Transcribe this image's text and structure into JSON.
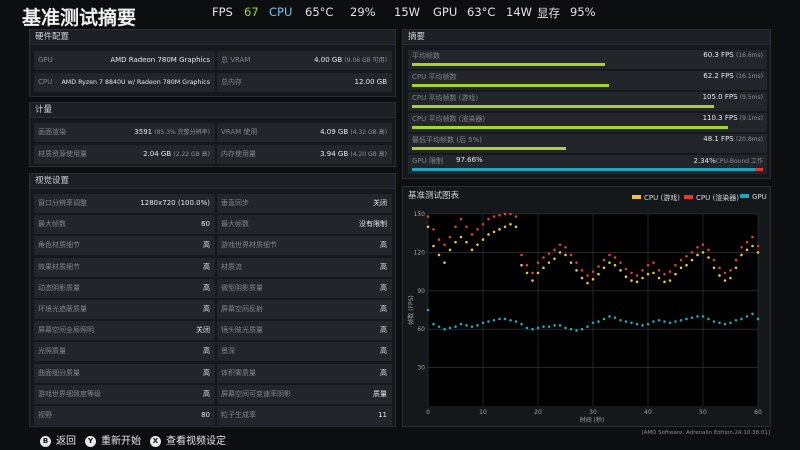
{
  "header": {
    "title": "基准测试摘要",
    "fps_label": "FPS",
    "fps_value": "67",
    "cpu_label": "CPU",
    "cpu_temp": "65°C",
    "cpu_util": "29%",
    "cpu_power": "15W",
    "gpu_label": "GPU",
    "gpu_temp": "63°C",
    "gpu_power": "14W",
    "vram_label": "显存",
    "vram_value": "95%"
  },
  "colors": {
    "fps_value": "#a7d32a",
    "cpu_label": "#7fc4ea",
    "bar": "#a7d32a",
    "cpu_game": "#e8c53a",
    "cpu_render": "#e23a3a",
    "gpu": "#1fa6bb"
  },
  "hardware": {
    "title": "硬件配置",
    "gpu_label": "GPU",
    "gpu_value": "AMD Radeon 780M Graphics",
    "vram_label": "总 VRAM",
    "vram_value": "4.00 GB",
    "vram_sub": "(9.06 GB 可用)",
    "cpu_label": "CPU",
    "cpu_value": "AMD Ryzen 7 8840U w/ Radeon 780M Graphics",
    "ram_label": "总内存",
    "ram_value": "12.00 GB"
  },
  "compute": {
    "title": "计量",
    "rows": [
      {
        "label": "画面渲染",
        "value": "3591",
        "sub": "(85.3% 完整分辨率)"
      },
      {
        "label": "VRAM 使用",
        "value": "4.09 GB",
        "sub": "(4.32 GB 高)"
      },
      {
        "label": "材质资源使用量",
        "value": "2.04 GB",
        "sub": "(2.22 GB 高)"
      },
      {
        "label": "内存使用量",
        "value": "3.94 GB",
        "sub": "(4.20 GB 高)"
      }
    ]
  },
  "settings": {
    "title": "视觉设置",
    "left": [
      {
        "label": "窗口分辨率调整",
        "value": "1280x720 (100.0%)"
      },
      {
        "label": "最大帧数",
        "value": "60"
      },
      {
        "label": "角色材质细节",
        "value": "高"
      },
      {
        "label": "效果材质细节",
        "value": "高"
      },
      {
        "label": "动态阴影质量",
        "value": "高"
      },
      {
        "label": "环境光遮蔽质量",
        "value": "高"
      },
      {
        "label": "屏幕空间全局照明",
        "value": "关闭"
      },
      {
        "label": "光照质量",
        "value": "高"
      },
      {
        "label": "曲面细分质量",
        "value": "高"
      },
      {
        "label": "游戏世界细致度等级",
        "value": "高"
      },
      {
        "label": "视野",
        "value": "80"
      }
    ],
    "right": [
      {
        "label": "垂直同步",
        "value": "关闭"
      },
      {
        "label": "最大帧数",
        "value": "没有限制"
      },
      {
        "label": "游戏世界材质细节",
        "value": "高"
      },
      {
        "label": "材质流",
        "value": "高"
      },
      {
        "label": "微型阴影质量",
        "value": "高"
      },
      {
        "label": "屏幕空间反射",
        "value": "高"
      },
      {
        "label": "镜头眩光质量",
        "value": "高"
      },
      {
        "label": "景深",
        "value": "高"
      },
      {
        "label": "体积雾质量",
        "value": "高"
      },
      {
        "label": "屏幕空间可变速率阴影",
        "value": "质量"
      },
      {
        "label": "粒子生成率",
        "value": "11"
      }
    ]
  },
  "summary": {
    "title": "摘要",
    "rows": [
      {
        "label": "平均帧数",
        "value": "60.3 FPS",
        "sub": "(16.6ms)",
        "pct": 0.55
      },
      {
        "label": "CPU 平均帧数",
        "value": "62.2 FPS",
        "sub": "(16.1ms)",
        "pct": 0.56
      },
      {
        "label": "CPU 平均帧数 (游戏)",
        "value": "105.0 FPS",
        "sub": "(9.5ms)",
        "pct": 0.86
      },
      {
        "label": "CPU 平均帧数 (渲染器)",
        "value": "110.3 FPS",
        "sub": "(9.1ms)",
        "pct": 0.9
      },
      {
        "label": "最低平均帧数 (后 5%)",
        "value": "48.1 FPS",
        "sub": "(20.8ms)",
        "pct": 0.44
      }
    ],
    "gpu_bound": {
      "label": "GPU 限制",
      "left_value": "97.66%",
      "right_value": "2.34%",
      "right_label": "CPU-Bound 工作",
      "pct": 0.9766
    }
  },
  "chart_data": {
    "type": "scatter",
    "title": "基准测试图表",
    "xlabel": "时间 (秒)",
    "ylabel": "帧数 (FPS)",
    "xlim": [
      0,
      60
    ],
    "ylim": [
      0,
      150
    ],
    "x_ticks": [
      "0",
      "10",
      "20",
      "30",
      "40",
      "50",
      "60"
    ],
    "y_ticks": [
      "30",
      "60",
      "90",
      "120",
      "150"
    ],
    "grid": true,
    "legend_position": "top-right",
    "series": [
      {
        "name": "CPU (游戏)",
        "color": "#e8c53a",
        "x": [
          0,
          1,
          2,
          3,
          4,
          5,
          6,
          7,
          8,
          9,
          10,
          11,
          12,
          13,
          14,
          15,
          16,
          17,
          18,
          19,
          20,
          21,
          22,
          23,
          24,
          25,
          26,
          27,
          28,
          29,
          30,
          31,
          32,
          33,
          34,
          35,
          36,
          37,
          38,
          39,
          40,
          41,
          42,
          43,
          44,
          45,
          46,
          47,
          48,
          49,
          50,
          51,
          52,
          53,
          54,
          55,
          56,
          57,
          58,
          59,
          60
        ],
        "y": [
          140,
          125,
          118,
          112,
          122,
          128,
          132,
          128,
          122,
          126,
          130,
          134,
          136,
          138,
          140,
          142,
          140,
          110,
          104,
          98,
          104,
          108,
          112,
          115,
          120,
          118,
          112,
          106,
          100,
          96,
          99,
          103,
          108,
          112,
          110,
          106,
          101,
          98,
          97,
          100,
          103,
          104,
          100,
          97,
          98,
          103,
          108,
          110,
          114,
          118,
          120,
          116,
          108,
          102,
          98,
          100,
          108,
          118,
          122,
          125,
          120
        ]
      },
      {
        "name": "CPU (渲染器)",
        "color": "#e23a3a",
        "x": [
          0,
          1,
          2,
          3,
          4,
          5,
          6,
          7,
          8,
          9,
          10,
          11,
          12,
          13,
          14,
          15,
          16,
          17,
          18,
          19,
          20,
          21,
          22,
          23,
          24,
          25,
          26,
          27,
          28,
          29,
          30,
          31,
          32,
          33,
          34,
          35,
          36,
          37,
          38,
          39,
          40,
          41,
          42,
          43,
          44,
          45,
          46,
          47,
          48,
          49,
          50,
          51,
          52,
          53,
          54,
          55,
          56,
          57,
          58,
          59,
          60
        ],
        "y": [
          148,
          138,
          130,
          126,
          132,
          140,
          146,
          140,
          134,
          138,
          142,
          146,
          148,
          149,
          150,
          150,
          148,
          118,
          110,
          104,
          112,
          116,
          119,
          122,
          126,
          124,
          118,
          112,
          106,
          102,
          105,
          109,
          114,
          118,
          116,
          112,
          107,
          104,
          102,
          106,
          110,
          112,
          106,
          103,
          105,
          110,
          114,
          117,
          120,
          124,
          126,
          122,
          114,
          108,
          104,
          106,
          114,
          124,
          128,
          132,
          125
        ]
      },
      {
        "name": "GPU",
        "color": "#1fa6bb",
        "x": [
          0,
          1,
          2,
          3,
          4,
          5,
          6,
          7,
          8,
          9,
          10,
          11,
          12,
          13,
          14,
          15,
          16,
          17,
          18,
          19,
          20,
          21,
          22,
          23,
          24,
          25,
          26,
          27,
          28,
          29,
          30,
          31,
          32,
          33,
          34,
          35,
          36,
          37,
          38,
          39,
          40,
          41,
          42,
          43,
          44,
          45,
          46,
          47,
          48,
          49,
          50,
          51,
          52,
          53,
          54,
          55,
          56,
          57,
          58,
          59,
          60
        ],
        "y": [
          75,
          64,
          62,
          60,
          61,
          62,
          64,
          63,
          62,
          63,
          65,
          66,
          67,
          68,
          68,
          67,
          66,
          64,
          61,
          60,
          61,
          62,
          62,
          63,
          63,
          61,
          60,
          59,
          60,
          62,
          65,
          66,
          68,
          70,
          69,
          67,
          66,
          65,
          64,
          63,
          64,
          66,
          67,
          66,
          65,
          66,
          67,
          68,
          69,
          70,
          70,
          68,
          66,
          65,
          64,
          65,
          67,
          68,
          70,
          72,
          68
        ]
      }
    ]
  },
  "footer": {
    "back_icon": "B",
    "back_label": "返回",
    "restart_icon": "Y",
    "restart_label": "重新开始",
    "video_icon": "X",
    "video_label": "查看视频设定",
    "version": "[AMD Software: Adrenalin Edition 24.10.38.01]"
  }
}
